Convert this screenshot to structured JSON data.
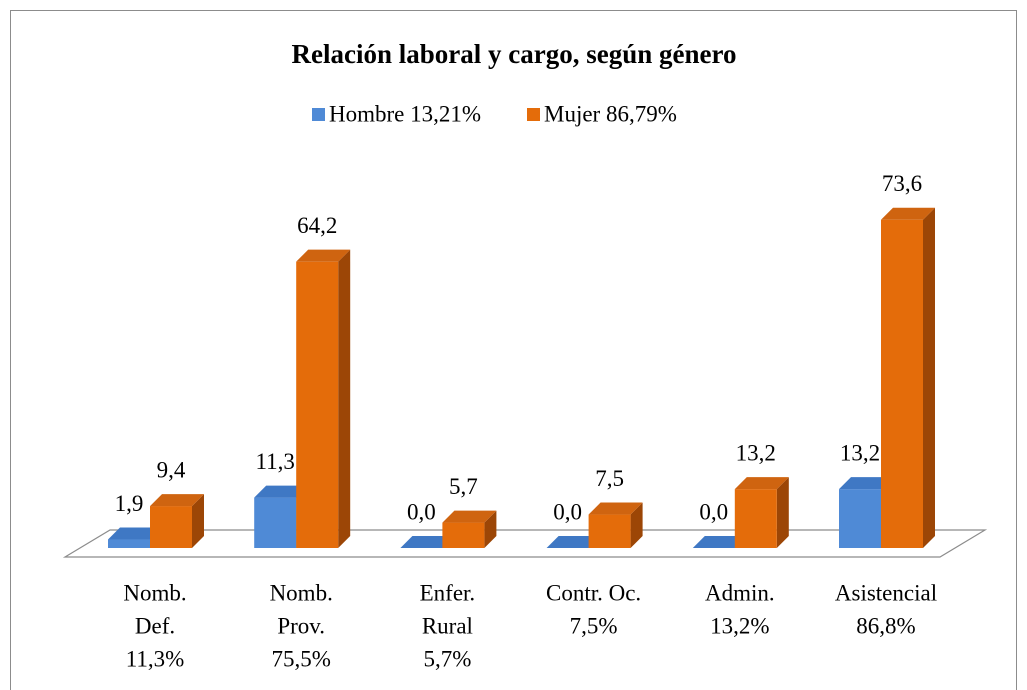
{
  "chart_data": {
    "type": "bar3d",
    "title": "Relación laboral y cargo, según género",
    "categories": [
      [
        "Nomb.",
        "Def.",
        "11,3%"
      ],
      [
        "Nomb.",
        "Prov.",
        "75,5%"
      ],
      [
        "Enfer.",
        "Rural",
        "5,7%"
      ],
      [
        "Contr. Oc.",
        "7,5%"
      ],
      [
        "Admin.",
        "13,2%"
      ],
      [
        "Asistencial",
        "86,8%"
      ]
    ],
    "series": [
      {
        "name": "Hombre 13,21%",
        "color": "#4f8ad6",
        "side": "#3a6aa8",
        "top": "#3f78c4",
        "values": [
          1.9,
          11.3,
          0.0,
          0.0,
          0.0,
          13.2
        ],
        "value_labels": [
          "1,9",
          "11,3",
          "0,0",
          "0,0",
          "0,0",
          "13,2"
        ]
      },
      {
        "name": "Mujer 86,79%",
        "color": "#e46c0a",
        "side": "#9c4606",
        "top": "#cf6410",
        "values": [
          9.4,
          64.2,
          5.7,
          7.5,
          13.2,
          73.6
        ],
        "value_labels": [
          "9,4",
          "64,2",
          "5,7",
          "7,5",
          "13,2",
          "73,6"
        ]
      }
    ],
    "legend": "top"
  }
}
